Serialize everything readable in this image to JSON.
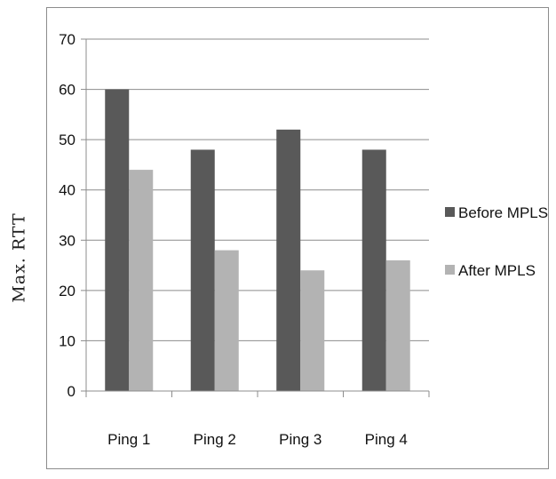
{
  "chart_data": {
    "type": "bar",
    "ylabel": "Max. RTT",
    "xlabel": "",
    "title": "",
    "categories": [
      "Ping 1",
      "Ping 2",
      "Ping 3",
      "Ping 4"
    ],
    "ylim": [
      0,
      70
    ],
    "yticks": [
      0,
      10,
      20,
      30,
      40,
      50,
      60,
      70
    ],
    "grid": true,
    "legend_position": "right",
    "series": [
      {
        "name": "Before MPLS",
        "color": "#595959",
        "values": [
          60,
          48,
          52,
          48
        ]
      },
      {
        "name": "After MPLS",
        "color": "#b3b3b3",
        "values": [
          44,
          28,
          24,
          26
        ]
      }
    ]
  }
}
